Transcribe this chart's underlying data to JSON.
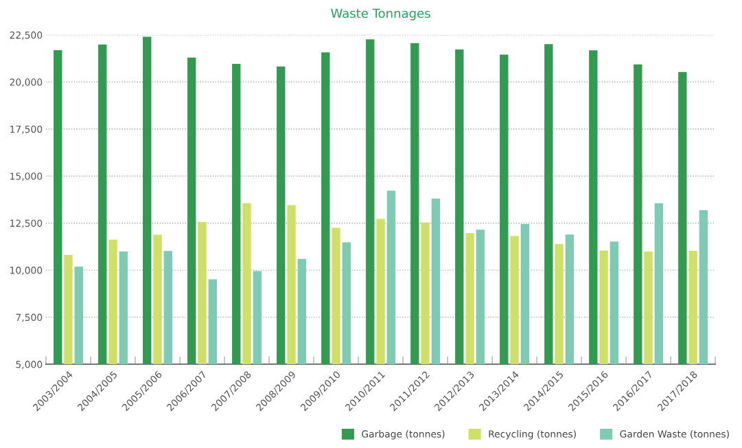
{
  "chart_data": {
    "type": "bar",
    "title": "Waste Tonnages",
    "categories": [
      "2003/2004",
      "2004/2005",
      "2005/2006",
      "2006/2007",
      "2007/2008",
      "2008/2009",
      "2009/2010",
      "2010/2011",
      "2011/2012",
      "2012/2013",
      "2013/2014",
      "2014/2015",
      "2015/2016",
      "2016/2017",
      "2017/2018"
    ],
    "series": [
      {
        "name": "Garbage (tonnes)",
        "color": "#339a52",
        "values": [
          21690,
          21990,
          22400,
          21300,
          20960,
          20820,
          21570,
          22270,
          22070,
          21730,
          21450,
          22010,
          21680,
          20930,
          20530
        ]
      },
      {
        "name": "Recycling (tonnes)",
        "color": "#d0df65",
        "values": [
          10810,
          11620,
          11890,
          12560,
          13560,
          13460,
          12250,
          12730,
          12530,
          11970,
          11810,
          11380,
          11050,
          10990,
          11030
        ]
      },
      {
        "name": "Garden Waste (tonnes)",
        "color": "#7ecab3",
        "values": [
          10190,
          10990,
          11020,
          9510,
          9950,
          10600,
          11480,
          14220,
          13800,
          12150,
          12450,
          11900,
          11520,
          13560,
          13180
        ]
      }
    ],
    "ylim": [
      5000,
      22500
    ],
    "yticks": [
      {
        "value": 5000,
        "label": "5,000"
      },
      {
        "value": 7500,
        "label": "7,500"
      },
      {
        "value": 10000,
        "label": "10,000"
      },
      {
        "value": 12500,
        "label": "12,500"
      },
      {
        "value": 15000,
        "label": "15,000"
      },
      {
        "value": 17500,
        "label": "17,500"
      },
      {
        "value": 20000,
        "label": "20,000"
      },
      {
        "value": 22500,
        "label": "22,500"
      }
    ],
    "grid": "y",
    "legend": "bottom right"
  }
}
